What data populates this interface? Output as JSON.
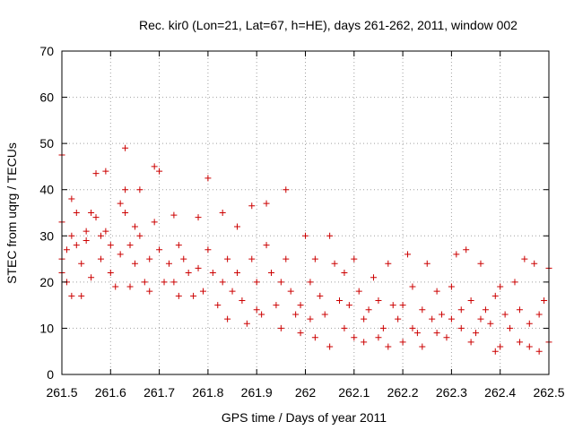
{
  "chart_data": {
    "type": "scatter",
    "title": "Rec. kir0 (Lon=21, Lat=67, h=HE), days 261-262, 2011, window 002",
    "xlabel": "GPS time / Days of year 2011",
    "ylabel": "STEC from uqrg / TECUs",
    "xlim": [
      261.5,
      262.5
    ],
    "ylim": [
      0,
      70
    ],
    "xticks": [
      261.5,
      261.6,
      261.7,
      261.8,
      261.9,
      262.0,
      262.1,
      262.2,
      262.3,
      262.4,
      262.5
    ],
    "xtick_labels": [
      "261.5",
      "261.6",
      "261.7",
      "261.8",
      "261.9",
      "262",
      "262.1",
      "262.2",
      "262.3",
      "262.4",
      "262.5"
    ],
    "yticks": [
      0,
      10,
      20,
      30,
      40,
      50,
      60,
      70
    ],
    "ytick_labels": [
      "0",
      "10",
      "20",
      "30",
      "40",
      "50",
      "60",
      "70"
    ],
    "grid": true,
    "marker": "plus",
    "colors": {
      "marker": "#cc0000",
      "grid": "#a0a0a0",
      "axis": "#000000"
    },
    "series": [
      {
        "points": [
          [
            261.5,
            47.5
          ],
          [
            261.5,
            33
          ],
          [
            261.5,
            25
          ],
          [
            261.5,
            22
          ],
          [
            261.51,
            27
          ],
          [
            261.51,
            20
          ],
          [
            261.52,
            38
          ],
          [
            261.52,
            30
          ],
          [
            261.52,
            17
          ],
          [
            261.53,
            35
          ],
          [
            261.53,
            28
          ],
          [
            261.54,
            24
          ],
          [
            261.54,
            17
          ],
          [
            261.55,
            31
          ],
          [
            261.55,
            29
          ],
          [
            261.56,
            35
          ],
          [
            261.56,
            21
          ],
          [
            261.57,
            43.5
          ],
          [
            261.57,
            34
          ],
          [
            261.58,
            30
          ],
          [
            261.58,
            25
          ],
          [
            261.59,
            44
          ],
          [
            261.59,
            31
          ],
          [
            261.6,
            28
          ],
          [
            261.6,
            22
          ],
          [
            261.61,
            19
          ],
          [
            261.62,
            37
          ],
          [
            261.62,
            26
          ],
          [
            261.63,
            49
          ],
          [
            261.63,
            40
          ],
          [
            261.63,
            35
          ],
          [
            261.64,
            28
          ],
          [
            261.64,
            19
          ],
          [
            261.65,
            32
          ],
          [
            261.65,
            24
          ],
          [
            261.66,
            40
          ],
          [
            261.66,
            30
          ],
          [
            261.67,
            20
          ],
          [
            261.68,
            25
          ],
          [
            261.68,
            18
          ],
          [
            261.69,
            45
          ],
          [
            261.69,
            33
          ],
          [
            261.7,
            44
          ],
          [
            261.7,
            27
          ],
          [
            261.71,
            20
          ],
          [
            261.72,
            24
          ],
          [
            261.73,
            34.5
          ],
          [
            261.73,
            20
          ],
          [
            261.74,
            28
          ],
          [
            261.74,
            17
          ],
          [
            261.75,
            25
          ],
          [
            261.76,
            22
          ],
          [
            261.77,
            17
          ],
          [
            261.78,
            34
          ],
          [
            261.78,
            23
          ],
          [
            261.79,
            18
          ],
          [
            261.8,
            42.5
          ],
          [
            261.8,
            27
          ],
          [
            261.81,
            22
          ],
          [
            261.82,
            15
          ],
          [
            261.83,
            35
          ],
          [
            261.83,
            20
          ],
          [
            261.84,
            25
          ],
          [
            261.84,
            12
          ],
          [
            261.85,
            18
          ],
          [
            261.86,
            32
          ],
          [
            261.86,
            22
          ],
          [
            261.87,
            16
          ],
          [
            261.88,
            11
          ],
          [
            261.89,
            36.5
          ],
          [
            261.89,
            25
          ],
          [
            261.9,
            20
          ],
          [
            261.9,
            14
          ],
          [
            261.91,
            13
          ],
          [
            261.92,
            37
          ],
          [
            261.92,
            28
          ],
          [
            261.93,
            22
          ],
          [
            261.94,
            15
          ],
          [
            261.95,
            20
          ],
          [
            261.95,
            10
          ],
          [
            261.96,
            40
          ],
          [
            261.96,
            25
          ],
          [
            261.97,
            18
          ],
          [
            261.98,
            13
          ],
          [
            261.99,
            9
          ],
          [
            261.99,
            15
          ],
          [
            262.0,
            30
          ],
          [
            262.01,
            20
          ],
          [
            262.01,
            12
          ],
          [
            262.02,
            25
          ],
          [
            262.02,
            8
          ],
          [
            262.03,
            17
          ],
          [
            262.04,
            13
          ],
          [
            262.05,
            6
          ],
          [
            262.05,
            30
          ],
          [
            262.06,
            24
          ],
          [
            262.07,
            16
          ],
          [
            262.08,
            10
          ],
          [
            262.08,
            22
          ],
          [
            262.09,
            15
          ],
          [
            262.1,
            25
          ],
          [
            262.1,
            8
          ],
          [
            262.11,
            18
          ],
          [
            262.12,
            12
          ],
          [
            262.12,
            7
          ],
          [
            262.13,
            14
          ],
          [
            262.14,
            21
          ],
          [
            262.15,
            8
          ],
          [
            262.15,
            16
          ],
          [
            262.16,
            10
          ],
          [
            262.17,
            24
          ],
          [
            262.17,
            6
          ],
          [
            262.18,
            15
          ],
          [
            262.19,
            12
          ],
          [
            262.2,
            7
          ],
          [
            262.2,
            15
          ],
          [
            262.21,
            26
          ],
          [
            262.22,
            10
          ],
          [
            262.22,
            19
          ],
          [
            262.23,
            9
          ],
          [
            262.24,
            14
          ],
          [
            262.24,
            6
          ],
          [
            262.25,
            24
          ],
          [
            262.26,
            12
          ],
          [
            262.27,
            9
          ],
          [
            262.27,
            18
          ],
          [
            262.28,
            13
          ],
          [
            262.29,
            8
          ],
          [
            262.3,
            19
          ],
          [
            262.3,
            12
          ],
          [
            262.31,
            26
          ],
          [
            262.32,
            14
          ],
          [
            262.32,
            10
          ],
          [
            262.33,
            27
          ],
          [
            262.34,
            16
          ],
          [
            262.34,
            7
          ],
          [
            262.35,
            9
          ],
          [
            262.36,
            24
          ],
          [
            262.36,
            12
          ],
          [
            262.37,
            14
          ],
          [
            262.38,
            11
          ],
          [
            262.39,
            17
          ],
          [
            262.39,
            5
          ],
          [
            262.4,
            6
          ],
          [
            262.4,
            19
          ],
          [
            262.41,
            13
          ],
          [
            262.42,
            10
          ],
          [
            262.43,
            20
          ],
          [
            262.44,
            14
          ],
          [
            262.44,
            7
          ],
          [
            262.45,
            25
          ],
          [
            262.46,
            6
          ],
          [
            262.46,
            11
          ],
          [
            262.47,
            24
          ],
          [
            262.48,
            13
          ],
          [
            262.48,
            5
          ],
          [
            262.49,
            16
          ],
          [
            262.5,
            7
          ],
          [
            262.5,
            23
          ]
        ]
      }
    ]
  }
}
